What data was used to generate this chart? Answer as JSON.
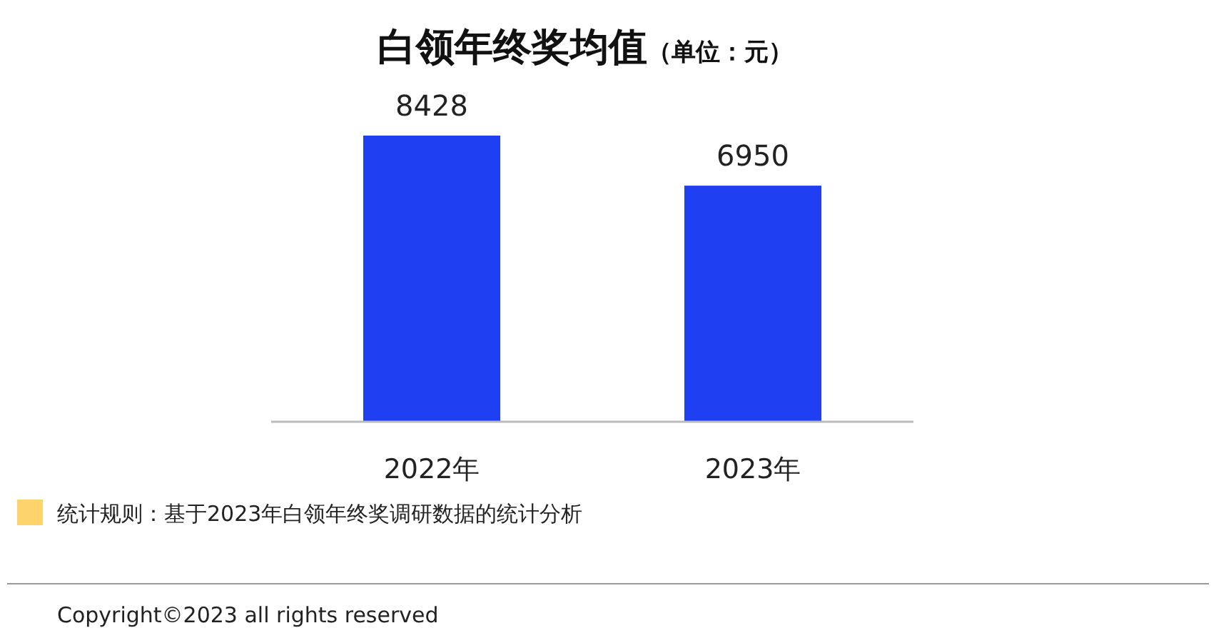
{
  "chart_data": {
    "type": "bar",
    "title": "白领年终奖均值",
    "subtitle": "（单位：元）",
    "categories": [
      "2022年",
      "2023年"
    ],
    "values": [
      8428,
      6950
    ],
    "color": "#1f3ff2",
    "data_labels": true,
    "annotations": [
      "统计规则：基于2023年白领年终奖调研数据的统计分析",
      "Copyright©2023 all rights reserved"
    ]
  }
}
